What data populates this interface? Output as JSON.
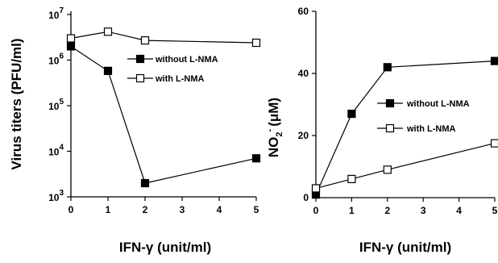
{
  "chart_data": [
    {
      "type": "line",
      "xlabel": "IFN-γ (unit/ml)",
      "ylabel": "Virus titers (PFU/ml)",
      "y_scale": "log",
      "ylim": [
        1000,
        10000000
      ],
      "xlim": [
        0,
        5
      ],
      "x_ticks": [
        "0",
        "1",
        "2",
        "3",
        "4",
        "5"
      ],
      "y_ticks": [
        {
          "base": "10",
          "exp": "3"
        },
        {
          "base": "10",
          "exp": "4"
        },
        {
          "base": "10",
          "exp": "5"
        },
        {
          "base": "10",
          "exp": "6"
        },
        {
          "base": "10",
          "exp": "7"
        }
      ],
      "grid": false,
      "legend_position": "top-right",
      "series": [
        {
          "name": "without L-NMA",
          "marker": "filled-square",
          "x": [
            0,
            1,
            2,
            5
          ],
          "y": [
            2000000,
            580000,
            2000,
            7000
          ]
        },
        {
          "name": "with L-NMA",
          "marker": "open-square",
          "x": [
            0,
            1,
            2,
            5
          ],
          "y": [
            3000000,
            4200000,
            2700000,
            2400000
          ]
        }
      ]
    },
    {
      "type": "line",
      "xlabel": "IFN-γ (unit/ml)",
      "ylabel": "NO2- (μM)",
      "ylabel_parts": {
        "main": "NO",
        "sub": "2",
        "sup": "-",
        "unit": "(μM)"
      },
      "y_scale": "linear",
      "ylim": [
        0,
        60
      ],
      "xlim": [
        0,
        5
      ],
      "x_ticks": [
        "0",
        "1",
        "2",
        "3",
        "4",
        "5"
      ],
      "y_ticks": [
        "0",
        "20",
        "40",
        "60"
      ],
      "grid": false,
      "legend_position": "center-right",
      "series": [
        {
          "name": "without L-NMA",
          "marker": "filled-square",
          "x": [
            0,
            1,
            2,
            5
          ],
          "y": [
            1,
            27,
            42,
            44
          ]
        },
        {
          "name": "with L-NMA",
          "marker": "open-square",
          "x": [
            0,
            1,
            2,
            5
          ],
          "y": [
            3,
            6,
            9,
            17.5
          ]
        }
      ]
    }
  ]
}
